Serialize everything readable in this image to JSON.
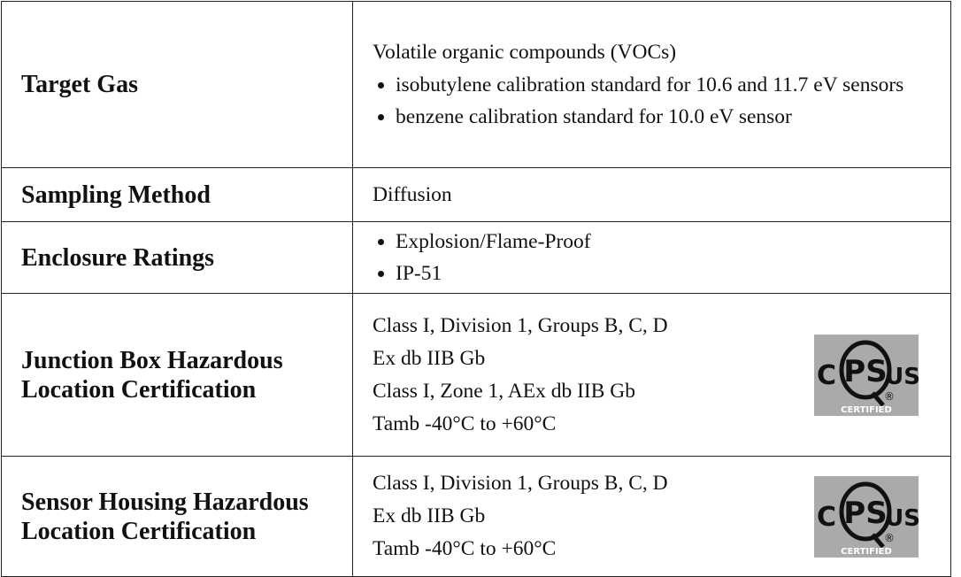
{
  "table": {
    "rows": [
      {
        "label": "Target Gas",
        "lines": [
          "Volatile organic compounds (VOCs)"
        ],
        "bullets": [
          "isobutylene calibration standard for 10.6 and 11.7 eV sensors",
          "benzene calibration standard for 10.0 eV sensor"
        ]
      },
      {
        "label": "Sampling Method",
        "lines": [
          "Diffusion"
        ]
      },
      {
        "label": "Enclosure Ratings",
        "bullets": [
          "Explosion/Flame-Proof",
          "IP-51"
        ]
      },
      {
        "label": "Junction Box Hazardous Location Certification",
        "lines": [
          "Class I, Division 1, Groups B, C, D",
          "Ex db IIB Gb",
          "Class I, Zone 1, AEx db IIB Gb",
          "Tamb -40°C to +60°C"
        ],
        "logo": {
          "c": "C",
          "ps": "PS",
          "us": "US",
          "reg": "®",
          "certified": "CERTIFIED"
        }
      },
      {
        "label": "Sensor Housing Hazardous Location Certification",
        "lines": [
          "Class I, Division 1, Groups B, C, D",
          "Ex db IIB Gb",
          "Tamb -40°C to +60°C"
        ],
        "logo": {
          "c": "C",
          "ps": "PS",
          "us": "US",
          "reg": "®",
          "certified": "CERTIFIED"
        }
      }
    ]
  }
}
